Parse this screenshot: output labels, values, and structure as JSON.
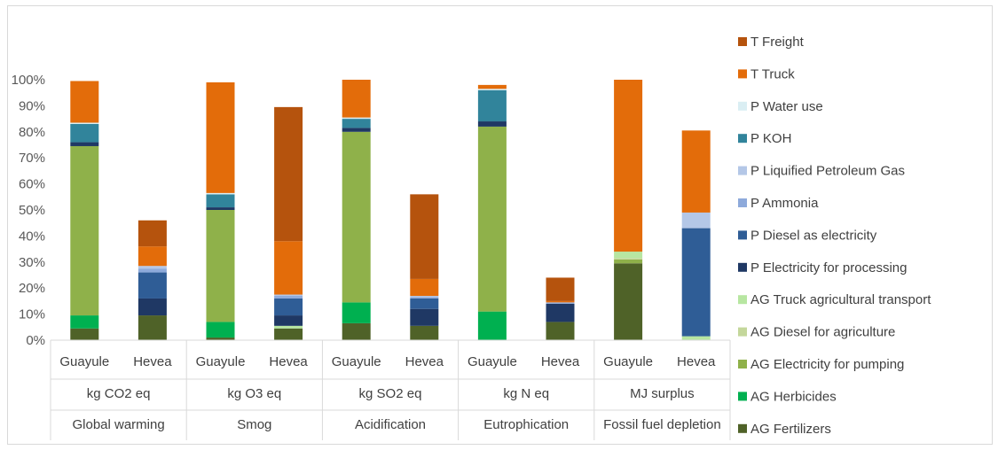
{
  "chart_data": {
    "type": "bar",
    "stacked": true,
    "y_axis": {
      "min": 0,
      "max": 100,
      "unit": "%",
      "ticks": [
        "0%",
        "10%",
        "20%",
        "30%",
        "40%",
        "50%",
        "60%",
        "70%",
        "80%",
        "90%",
        "100%"
      ]
    },
    "categories": [
      "Guayule",
      "Hevea",
      "Guayule",
      "Hevea",
      "Guayule",
      "Hevea",
      "Guayule",
      "Hevea",
      "Guayule",
      "Hevea"
    ],
    "groups": [
      {
        "unit": "kg CO2 eq",
        "category": "Global warming"
      },
      {
        "unit": "kg O3 eq",
        "category": "Smog"
      },
      {
        "unit": "kg SO2 eq",
        "category": "Acidification"
      },
      {
        "unit": "kg N eq",
        "category": "Eutrophication"
      },
      {
        "unit": "MJ surplus",
        "category": "Fossil fuel depletion"
      }
    ],
    "series": [
      {
        "name": "AG Fertilizers",
        "color": "#4f6228",
        "values": [
          4.5,
          9.5,
          1.0,
          4.5,
          6.5,
          5.5,
          0.0,
          7.0,
          29.5,
          0.0
        ]
      },
      {
        "name": "AG Herbicides",
        "color": "#00b050",
        "values": [
          5.0,
          0.0,
          6.0,
          0.0,
          8.0,
          0.0,
          11.0,
          0.0,
          0.0,
          0.0
        ]
      },
      {
        "name": "AG Electricity for pumping",
        "color": "#8fb14a",
        "values": [
          65.0,
          0.0,
          43.0,
          0.0,
          65.5,
          0.0,
          71.0,
          0.0,
          1.5,
          0.0
        ]
      },
      {
        "name": "AG Diesel for agriculture",
        "color": "#c4d79b",
        "values": [
          0.0,
          0.0,
          0.0,
          0.0,
          0.0,
          0.0,
          0.0,
          0.0,
          0.5,
          0.0
        ]
      },
      {
        "name": "AG Truck agricultural transport",
        "color": "#b7e6a1",
        "values": [
          0.0,
          0.0,
          0.0,
          1.0,
          0.0,
          0.0,
          0.0,
          0.0,
          2.5,
          1.5
        ]
      },
      {
        "name": "P Electricity for processing",
        "color": "#1f3864",
        "values": [
          1.5,
          6.5,
          1.0,
          4.0,
          1.5,
          6.5,
          2.0,
          7.0,
          0.0,
          0.0
        ]
      },
      {
        "name": "P Diesel as electricity",
        "color": "#2f5d96",
        "values": [
          0.0,
          10.0,
          0.0,
          6.5,
          0.0,
          4.0,
          0.0,
          0.0,
          0.0,
          41.5
        ]
      },
      {
        "name": "P Ammonia",
        "color": "#8eaadb",
        "values": [
          0.0,
          1.5,
          0.0,
          1.0,
          0.0,
          0.5,
          0.0,
          0.5,
          0.0,
          0.0
        ]
      },
      {
        "name": "P Liquified Petroleum Gas",
        "color": "#b4c7e7",
        "values": [
          0.0,
          1.0,
          0.0,
          0.5,
          0.0,
          0.5,
          0.0,
          0.0,
          0.0,
          6.0
        ]
      },
      {
        "name": "P KOH",
        "color": "#31849b",
        "values": [
          7.0,
          0.0,
          5.0,
          0.0,
          3.5,
          0.0,
          12.0,
          0.0,
          0.0,
          0.0
        ]
      },
      {
        "name": "P Water use",
        "color": "#daeef3",
        "values": [
          0.5,
          0.0,
          0.5,
          0.0,
          0.5,
          0.0,
          0.5,
          0.0,
          0.0,
          0.0
        ]
      },
      {
        "name": "T Truck",
        "color": "#e36c0a",
        "values": [
          16.0,
          7.5,
          42.5,
          20.5,
          14.5,
          6.5,
          1.5,
          0.5,
          66.0,
          31.5
        ]
      },
      {
        "name": "T Freight",
        "color": "#b5530d",
        "values": [
          0.0,
          10.0,
          0.0,
          51.5,
          0.0,
          32.5,
          0.0,
          9.0,
          0.0,
          0.0
        ]
      }
    ],
    "legend_order": [
      "T Freight",
      "T Truck",
      "P Water use",
      "P KOH",
      "P Liquified Petroleum Gas",
      "P Ammonia",
      "P Diesel as electricity",
      "P Electricity for processing",
      "AG Truck agricultural transport",
      "AG Diesel for agriculture",
      "AG Electricity for pumping",
      "AG Herbicides",
      "AG Fertilizers"
    ],
    "legend_position": "right",
    "grid": false
  }
}
